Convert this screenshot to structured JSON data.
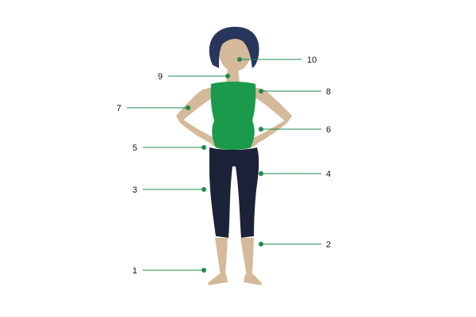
{
  "colors": {
    "skin": "#d4b99a",
    "skin_shadow": "#c3a785",
    "hair": "#27365a",
    "top": "#1c9a4b",
    "pants": "#1c2238",
    "callout": "#1f8a4c",
    "label": "#111111"
  },
  "callouts": [
    {
      "id": "1",
      "label": "1"
    },
    {
      "id": "2",
      "label": "2"
    },
    {
      "id": "3",
      "label": "3"
    },
    {
      "id": "4",
      "label": "4"
    },
    {
      "id": "5",
      "label": "5"
    },
    {
      "id": "6",
      "label": "6"
    },
    {
      "id": "7",
      "label": "7"
    },
    {
      "id": "8",
      "label": "8"
    },
    {
      "id": "9",
      "label": "9"
    },
    {
      "id": "10",
      "label": "10"
    }
  ]
}
